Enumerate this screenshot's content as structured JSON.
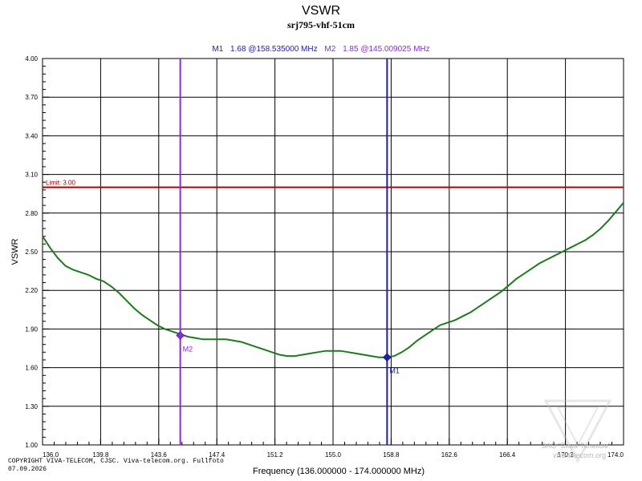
{
  "chart_data": {
    "type": "line",
    "title": "VSWR",
    "subtitle": "srj795-vhf-51cm",
    "xlabel": "Frequency (136.000000 - 174.000000 MHz)",
    "ylabel": "VSWR",
    "xlim": [
      136.0,
      174.0
    ],
    "ylim": [
      1.0,
      4.0
    ],
    "x_ticks": [
      "136.0",
      "139.8",
      "143.6",
      "147.4",
      "151.2",
      "155.0",
      "158.8",
      "162.6",
      "166.4",
      "170.2",
      "174.0"
    ],
    "y_ticks": [
      "1.00",
      "1.30",
      "1.60",
      "1.90",
      "2.20",
      "2.50",
      "2.80",
      "3.10",
      "3.40",
      "3.70",
      "4.00"
    ],
    "grid": true,
    "limit": {
      "label": "Limit: 3.00",
      "value": 3.0,
      "color": "#b00000"
    },
    "markers": [
      {
        "name": "M1",
        "label": "M1",
        "info_name": "M1",
        "info_value": "1.68 @158.535000 MHz",
        "x": 158.535,
        "y": 1.68,
        "color": "#1a1acc"
      },
      {
        "name": "M2",
        "label": "M2",
        "info_name": "M2",
        "info_value": "1.85 @145.009025 MHz",
        "x": 145.009025,
        "y": 1.85,
        "color": "#8a2be2"
      }
    ],
    "series": [
      {
        "color": "#1e7a1e",
        "x": [
          136.0,
          136.5,
          137.0,
          137.5,
          138.0,
          138.5,
          139.0,
          139.5,
          140.0,
          140.5,
          141.0,
          141.5,
          142.0,
          142.5,
          143.0,
          143.5,
          144.0,
          144.5,
          145.0,
          145.5,
          146.0,
          146.5,
          147.0,
          147.5,
          148.0,
          148.5,
          149.0,
          149.5,
          150.0,
          150.5,
          151.0,
          151.5,
          152.0,
          152.5,
          153.0,
          153.5,
          154.0,
          154.5,
          155.0,
          155.5,
          156.0,
          156.5,
          157.0,
          157.5,
          158.0,
          158.5,
          159.0,
          159.5,
          160.0,
          160.5,
          161.0,
          161.5,
          162.0,
          162.5,
          163.0,
          163.5,
          164.0,
          164.5,
          165.0,
          165.5,
          166.0,
          166.5,
          167.0,
          167.5,
          168.0,
          168.5,
          169.0,
          169.5,
          170.0,
          170.5,
          171.0,
          171.5,
          172.0,
          172.5,
          173.0,
          173.5,
          174.0
        ],
        "y": [
          2.62,
          2.53,
          2.45,
          2.39,
          2.36,
          2.34,
          2.32,
          2.29,
          2.27,
          2.23,
          2.18,
          2.12,
          2.06,
          2.01,
          1.97,
          1.93,
          1.9,
          1.88,
          1.86,
          1.84,
          1.83,
          1.82,
          1.82,
          1.82,
          1.82,
          1.81,
          1.8,
          1.78,
          1.76,
          1.74,
          1.72,
          1.7,
          1.69,
          1.69,
          1.7,
          1.71,
          1.72,
          1.73,
          1.73,
          1.73,
          1.72,
          1.71,
          1.7,
          1.69,
          1.68,
          1.68,
          1.69,
          1.72,
          1.76,
          1.81,
          1.85,
          1.89,
          1.93,
          1.95,
          1.97,
          2.0,
          2.03,
          2.07,
          2.11,
          2.15,
          2.19,
          2.24,
          2.29,
          2.33,
          2.37,
          2.41,
          2.44,
          2.47,
          2.5,
          2.53,
          2.56,
          2.59,
          2.63,
          2.68,
          2.74,
          2.81,
          2.88
        ]
      }
    ]
  },
  "footer": {
    "copyright": "COPYRIGHT VIVA-TELECOM, CJSC. Viva-telecom.org. Fullfoto",
    "date": "07.09.2026"
  },
  "watermark": {
    "line1": "ЗАО \"Вива-Телеком\"",
    "line2": "viva-telecom.org"
  }
}
